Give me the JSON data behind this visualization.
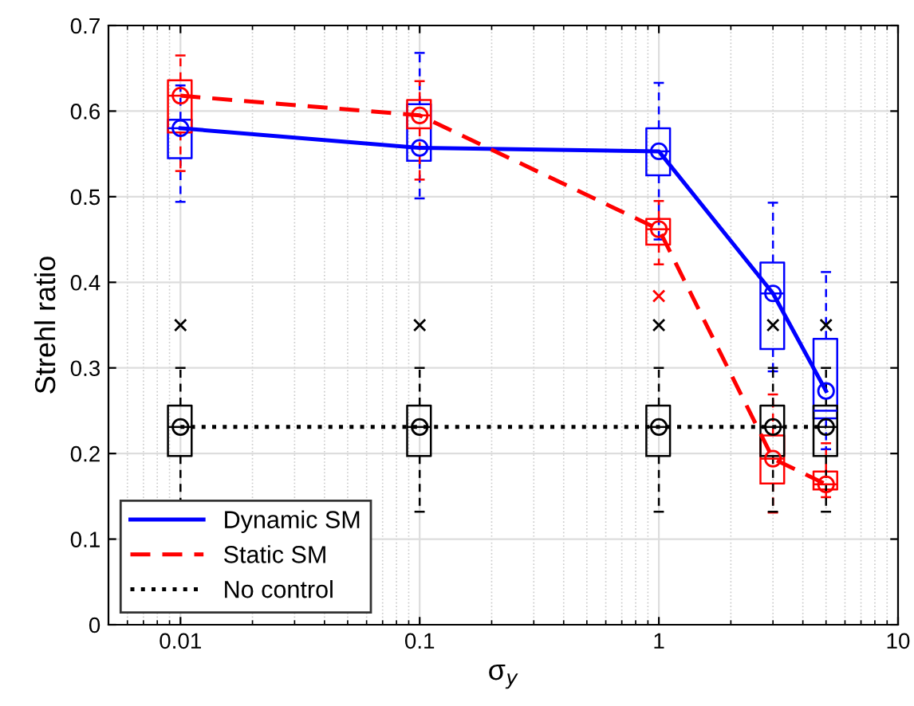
{
  "chart_data": {
    "type": "box",
    "xlabel": "σ$_{y}$",
    "ylabel": "Strehl ratio",
    "log": "x",
    "xlim": [
      0.005,
      10
    ],
    "xticks": [
      0.01,
      0.1,
      1,
      10
    ],
    "ylim": [
      0,
      0.7
    ],
    "yticks": [
      0,
      0.1,
      0.2,
      0.3,
      0.4,
      0.5,
      0.6,
      0.7
    ],
    "grid": true,
    "legend": "bottom left",
    "series": [
      {
        "color": "#0000ff",
        "x": [
          0.01,
          0.1,
          1,
          3,
          5
        ],
        "boxes": [
          {
            "low": 0.494,
            "q1": 0.545,
            "median": 0.58,
            "q3": 0.59,
            "high": 0.63,
            "mean": 0.58
          },
          {
            "low": 0.498,
            "q1": 0.542,
            "median": 0.557,
            "q3": 0.608,
            "high": 0.668,
            "mean": 0.557
          },
          {
            "low": 0.45,
            "q1": 0.525,
            "median": 0.553,
            "q3": 0.58,
            "high": 0.633,
            "mean": 0.553
          },
          {
            "low": 0.296,
            "q1": 0.322,
            "median": 0.387,
            "q3": 0.423,
            "high": 0.493,
            "mean": 0.387
          },
          {
            "low": 0.205,
            "q1": 0.241,
            "median": 0.25,
            "q3": 0.334,
            "high": 0.412,
            "mean": 0.273
          }
        ]
      },
      {
        "color": "#ff0000",
        "x": [
          0.01,
          0.1,
          1,
          3,
          5
        ],
        "boxes": [
          {
            "low": 0.53,
            "q1": 0.575,
            "median": 0.618,
            "q3": 0.636,
            "high": 0.665,
            "mean": 0.618
          },
          {
            "low": 0.52,
            "q1": 0.58,
            "median": 0.595,
            "q3": 0.613,
            "high": 0.635,
            "mean": 0.595
          },
          {
            "low": 0.421,
            "q1": 0.444,
            "median": 0.462,
            "q3": 0.474,
            "high": 0.495,
            "mean": 0.462,
            "outliers": [
              0.384
            ]
          },
          {
            "low": 0.131,
            "q1": 0.165,
            "median": 0.194,
            "q3": 0.221,
            "high": 0.269,
            "mean": 0.194
          },
          {
            "low": 0.149,
            "q1": 0.158,
            "median": 0.164,
            "q3": 0.179,
            "high": 0.212,
            "mean": 0.164
          }
        ]
      },
      {
        "color": "#000000",
        "x": [
          0.01,
          0.1,
          1,
          3,
          5
        ],
        "boxes": [
          {
            "low": 0.132,
            "q1": 0.197,
            "median": 0.231,
            "q3": 0.256,
            "high": 0.3,
            "mean": 0.231,
            "outliers": [
              0.35
            ]
          },
          {
            "low": 0.132,
            "q1": 0.197,
            "median": 0.231,
            "q3": 0.256,
            "high": 0.3,
            "mean": 0.231,
            "outliers": [
              0.35
            ]
          },
          {
            "low": 0.132,
            "q1": 0.197,
            "median": 0.231,
            "q3": 0.256,
            "high": 0.3,
            "mean": 0.231,
            "outliers": [
              0.35
            ]
          },
          {
            "low": 0.132,
            "q1": 0.197,
            "median": 0.231,
            "q3": 0.256,
            "high": 0.3,
            "mean": 0.231,
            "outliers": [
              0.35
            ]
          },
          {
            "low": 0.132,
            "q1": 0.197,
            "median": 0.231,
            "q3": 0.256,
            "high": 0.3,
            "mean": 0.231,
            "outliers": [
              0.35
            ]
          }
        ]
      },
      {
        "name": "Dynamic SM",
        "type": "line",
        "line_style": "solid",
        "color": "#0000ff",
        "x": [
          0.01,
          0.1,
          1,
          3,
          5
        ],
        "values": [
          0.58,
          0.557,
          0.553,
          0.387,
          0.273
        ]
      },
      {
        "name": "Static SM",
        "type": "line",
        "line_style": "dashed",
        "color": "#ff0000",
        "x": [
          0.01,
          0.1,
          1,
          3,
          5
        ],
        "values": [
          0.618,
          0.595,
          0.462,
          0.194,
          0.164
        ]
      },
      {
        "name": "No control",
        "type": "line",
        "line_style": "dotted",
        "color": "#000000",
        "x": [
          0.01,
          0.1,
          1,
          3,
          5
        ],
        "values": [
          0.231,
          0.231,
          0.231,
          0.231,
          0.231
        ]
      }
    ]
  }
}
